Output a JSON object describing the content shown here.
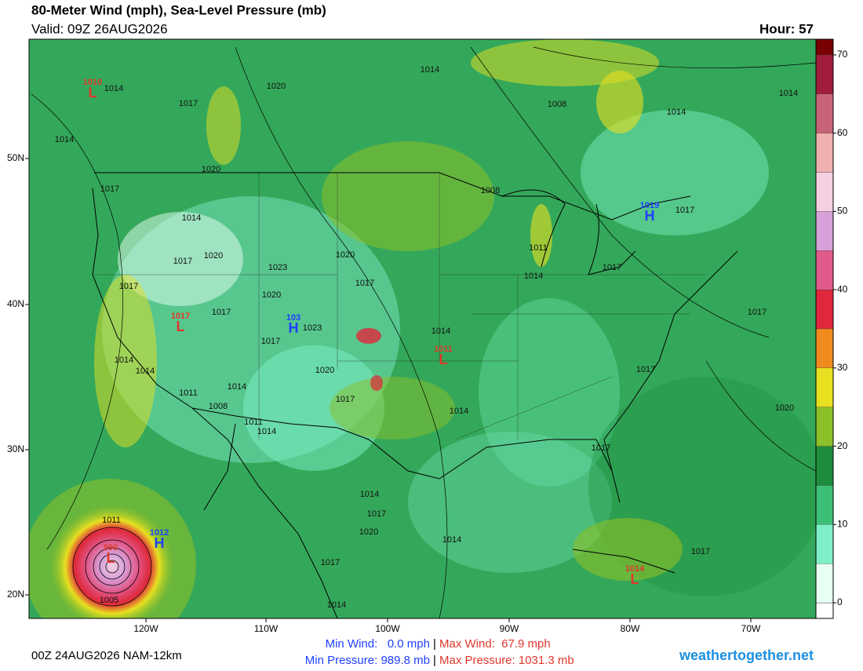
{
  "header": {
    "title": "80-Meter Wind (mph), Sea-Level Pressure (mb)",
    "valid": "Valid: 09Z 26AUG2026",
    "hour": "Hour: 57"
  },
  "map": {
    "lat_labels": [
      "50N",
      "40N",
      "30N",
      "20N"
    ],
    "lon_labels": [
      "120W",
      "110W",
      "100W",
      "90W",
      "80W",
      "70W"
    ],
    "pressure_labels": [
      "1014",
      "1017",
      "1020",
      "1014",
      "1008",
      "1014",
      "1014",
      "1014",
      "1020",
      "1017",
      "1014",
      "1020",
      "1017",
      "1023",
      "1020",
      "1017",
      "1017",
      "1020",
      "1017",
      "1023",
      "1017",
      "1014",
      "1008",
      "1011",
      "1014",
      "1017",
      "1017",
      "1017",
      "1017",
      "1014",
      "1014",
      "1020",
      "1014",
      "1011",
      "1008",
      "1017",
      "1014",
      "1011",
      "1014",
      "1020",
      "1017",
      "1014",
      "1017",
      "1020",
      "1014",
      "1017",
      "1014",
      "1017",
      "1011",
      "1005"
    ],
    "centers": [
      {
        "letter": "L",
        "value": "1010"
      },
      {
        "letter": "L",
        "value": "1017"
      },
      {
        "letter": "H",
        "value": "103"
      },
      {
        "letter": "L",
        "value": "1011"
      },
      {
        "letter": "H",
        "value": "1019"
      },
      {
        "letter": "H",
        "value": "1012"
      },
      {
        "letter": "L",
        "value": "990"
      },
      {
        "letter": "L",
        "value": "1014"
      }
    ]
  },
  "colorbar": {
    "lim": [
      -2,
      72
    ],
    "ticks": [
      0,
      10,
      20,
      30,
      40,
      50,
      60,
      70
    ],
    "levels": [
      0,
      5,
      10,
      15,
      20,
      25,
      30,
      35,
      40,
      45,
      50,
      55,
      60,
      65,
      70
    ],
    "colors": [
      "#e8fff4",
      "#7ef0c8",
      "#3cc078",
      "#1e8c3c",
      "#8cc028",
      "#e8e020",
      "#f08c1e",
      "#e0283c",
      "#e05a8c",
      "#d8a0d8",
      "#f4d0e0",
      "#f0b0b0",
      "#c86478",
      "#a01e3c",
      "#780000"
    ]
  },
  "footer": {
    "run": "00Z 24AUG2026 NAM-12km",
    "min_wind": "Min Wind:   0.0 mph",
    "max_wind": "Max Wind:  67.9 mph",
    "min_pressure": "Min Pressure: 989.8 mb",
    "max_pressure": "Max Pressure: 1031.3 mb",
    "separator": "|",
    "site": "weathertogether.net"
  }
}
